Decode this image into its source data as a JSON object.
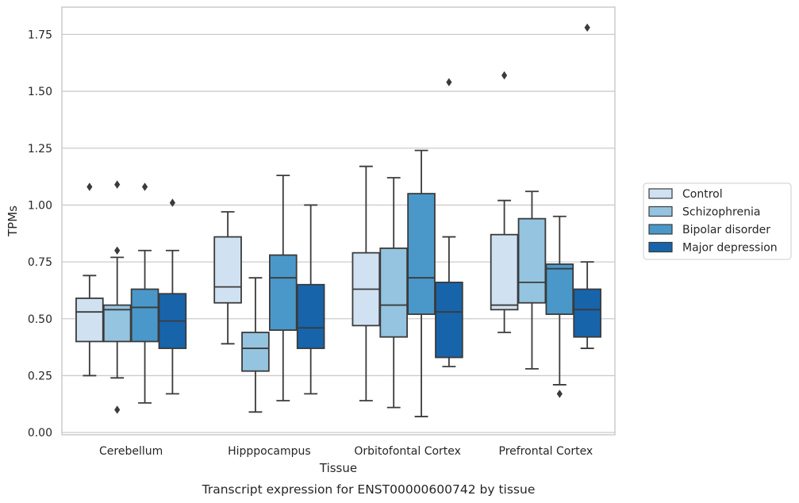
{
  "chart_data": {
    "type": "box",
    "xlabel": "Tissue",
    "ylabel": "TPMs",
    "caption": "Transcript expression for ENST00000600742 by tissue",
    "ylim": [
      -0.01,
      1.87
    ],
    "yticks": [
      {
        "value": 0.0,
        "label": "0.00"
      },
      {
        "value": 0.25,
        "label": "0.25"
      },
      {
        "value": 0.5,
        "label": "0.50"
      },
      {
        "value": 0.75,
        "label": "0.75"
      },
      {
        "value": 1.0,
        "label": "1.00"
      },
      {
        "value": 1.25,
        "label": "1.25"
      },
      {
        "value": 1.5,
        "label": "1.50"
      },
      {
        "value": 1.75,
        "label": "1.75"
      }
    ],
    "grid": "horizontal",
    "legend_position": "right",
    "categories": [
      "Cerebellum",
      "Hipppocampus",
      "Orbitofontal Cortex",
      "Prefrontal Cortex"
    ],
    "series": [
      {
        "name": "Control",
        "color": "#d0e1f2",
        "boxes": [
          {
            "whislo": 0.25,
            "q1": 0.4,
            "med": 0.53,
            "q3": 0.59,
            "whishi": 0.69,
            "fliers": [
              1.08
            ]
          },
          {
            "whislo": 0.39,
            "q1": 0.57,
            "med": 0.64,
            "q3": 0.86,
            "whishi": 0.97,
            "fliers": []
          },
          {
            "whislo": 0.14,
            "q1": 0.47,
            "med": 0.63,
            "q3": 0.79,
            "whishi": 1.17,
            "fliers": []
          },
          {
            "whislo": 0.44,
            "q1": 0.54,
            "med": 0.56,
            "q3": 0.87,
            "whishi": 1.02,
            "fliers": [
              1.57
            ]
          }
        ]
      },
      {
        "name": "Schizophrenia",
        "color": "#94c4df",
        "boxes": [
          {
            "whislo": 0.24,
            "q1": 0.4,
            "med": 0.54,
            "q3": 0.56,
            "whishi": 0.77,
            "fliers": [
              1.09,
              0.8,
              0.1
            ]
          },
          {
            "whislo": 0.09,
            "q1": 0.27,
            "med": 0.37,
            "q3": 0.44,
            "whishi": 0.68,
            "fliers": []
          },
          {
            "whislo": 0.11,
            "q1": 0.42,
            "med": 0.56,
            "q3": 0.81,
            "whishi": 1.12,
            "fliers": []
          },
          {
            "whislo": 0.28,
            "q1": 0.57,
            "med": 0.66,
            "q3": 0.94,
            "whishi": 1.06,
            "fliers": []
          }
        ]
      },
      {
        "name": "Bipolar disorder",
        "color": "#4a98c9",
        "boxes": [
          {
            "whislo": 0.13,
            "q1": 0.4,
            "med": 0.55,
            "q3": 0.63,
            "whishi": 0.8,
            "fliers": [
              1.08
            ]
          },
          {
            "whislo": 0.14,
            "q1": 0.45,
            "med": 0.68,
            "q3": 0.78,
            "whishi": 1.13,
            "fliers": []
          },
          {
            "whislo": 0.07,
            "q1": 0.52,
            "med": 0.68,
            "q3": 1.05,
            "whishi": 1.24,
            "fliers": []
          },
          {
            "whislo": 0.21,
            "q1": 0.52,
            "med": 0.72,
            "q3": 0.74,
            "whishi": 0.95,
            "fliers": [
              0.17
            ]
          }
        ]
      },
      {
        "name": "Major depression",
        "color": "#1764ab",
        "boxes": [
          {
            "whislo": 0.17,
            "q1": 0.37,
            "med": 0.49,
            "q3": 0.61,
            "whishi": 0.8,
            "fliers": [
              1.01
            ]
          },
          {
            "whislo": 0.17,
            "q1": 0.37,
            "med": 0.46,
            "q3": 0.65,
            "whishi": 1.0,
            "fliers": []
          },
          {
            "whislo": 0.29,
            "q1": 0.33,
            "med": 0.53,
            "q3": 0.66,
            "whishi": 0.86,
            "fliers": [
              1.54
            ]
          },
          {
            "whislo": 0.37,
            "q1": 0.42,
            "med": 0.54,
            "q3": 0.63,
            "whishi": 0.75,
            "fliers": [
              1.78
            ]
          }
        ]
      }
    ],
    "colors": {
      "grid": "#cccccc",
      "frame": "#cccccc",
      "box_edge": "#3b3b3b",
      "text": "#262626"
    }
  }
}
